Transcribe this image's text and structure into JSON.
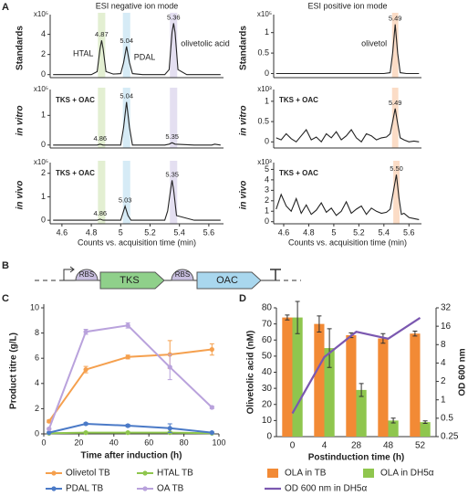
{
  "panels": [
    "A",
    "B",
    "C",
    "D"
  ],
  "chart_data": [
    {
      "type": "line",
      "title": "ESI negative ion mode",
      "ylabel": "Standards",
      "y_multiplier": "x10⁵",
      "xlim": [
        4.52,
        5.7
      ],
      "ylim": [
        -0.3,
        5.6
      ],
      "yticks": [
        0,
        2,
        4
      ],
      "x": [
        4.54,
        4.8,
        4.84,
        4.86,
        4.87,
        4.88,
        4.9,
        4.95,
        5.0,
        5.02,
        5.04,
        5.06,
        5.08,
        5.15,
        5.3,
        5.33,
        5.35,
        5.36,
        5.37,
        5.39,
        5.45,
        5.68
      ],
      "series": [
        {
          "color": "#222222",
          "values": [
            0,
            0,
            0.3,
            2.6,
            3.4,
            2.6,
            0.3,
            0.05,
            0.1,
            1.2,
            2.8,
            1.2,
            0.1,
            0,
            0,
            0.5,
            4.2,
            5.1,
            4.2,
            0.5,
            0,
            0
          ]
        }
      ],
      "highlights": [
        {
          "x": [
            4.845,
            4.895
          ],
          "color": "#e3efd2"
        },
        {
          "x": [
            5.015,
            5.065
          ],
          "color": "#d6ebf6"
        },
        {
          "x": [
            5.335,
            5.385
          ],
          "color": "#e4dff1"
        }
      ],
      "peak_labels": [
        {
          "text": "4.87",
          "x": 4.87
        },
        {
          "text": "5.04",
          "x": 5.04
        },
        {
          "text": "5.36",
          "x": 5.36
        }
      ],
      "compound_labels": [
        {
          "text": "HTAL",
          "x": 4.87
        },
        {
          "text": "PDAL",
          "x": 5.04
        },
        {
          "text": "olivetolic acid",
          "x": 5.36
        }
      ]
    },
    {
      "type": "line",
      "ylabel": "in vitro",
      "label": "TKS + OAC",
      "y_multiplier": "x10⁵",
      "xlim": [
        4.52,
        5.7
      ],
      "ylim": [
        -0.1,
        1.75
      ],
      "yticks": [
        0,
        1
      ],
      "x": [
        4.54,
        4.84,
        4.86,
        4.88,
        5.0,
        5.02,
        5.04,
        5.06,
        5.08,
        5.3,
        5.33,
        5.35,
        5.37,
        5.5,
        5.62,
        5.64,
        5.68
      ],
      "series": [
        {
          "color": "#222222",
          "values": [
            0,
            0,
            0.03,
            0,
            0,
            0.6,
            1.45,
            0.6,
            0,
            0,
            0.03,
            0.08,
            0.03,
            0,
            0,
            0.03,
            0
          ]
        }
      ],
      "highlights": [
        {
          "x": [
            4.845,
            4.895
          ],
          "color": "#e3efd2"
        },
        {
          "x": [
            5.015,
            5.065
          ],
          "color": "#d6ebf6"
        },
        {
          "x": [
            5.335,
            5.385
          ],
          "color": "#e4dff1"
        }
      ],
      "peak_labels": [
        {
          "text": "4.86",
          "x": 4.86
        },
        {
          "text": "5.04",
          "x": 5.04
        },
        {
          "text": "5.35",
          "x": 5.35
        }
      ]
    },
    {
      "type": "line",
      "ylabel": "in vivo",
      "label": "TKS + OAC",
      "y_multiplier": "x10⁵",
      "xlim": [
        4.52,
        5.7
      ],
      "ylim": [
        -0.15,
        2.3
      ],
      "yticks": [
        0,
        1,
        2
      ],
      "xticks": [
        4.6,
        4.8,
        5,
        5.2,
        5.4,
        5.6
      ],
      "xlabel": "Counts vs. acquisition time (min)",
      "x": [
        4.54,
        4.84,
        4.86,
        4.88,
        5.0,
        5.01,
        5.03,
        5.05,
        5.07,
        5.3,
        5.32,
        5.34,
        5.35,
        5.36,
        5.38,
        5.5,
        5.68
      ],
      "series": [
        {
          "color": "#222222",
          "values": [
            0,
            0,
            0.05,
            0,
            0,
            0.2,
            0.6,
            0.2,
            0,
            0,
            0.4,
            1.3,
            1.7,
            1.3,
            0.2,
            0,
            0
          ]
        }
      ],
      "highlights": [
        {
          "x": [
            4.845,
            4.895
          ],
          "color": "#e3efd2"
        },
        {
          "x": [
            5.015,
            5.065
          ],
          "color": "#d6ebf6"
        },
        {
          "x": [
            5.335,
            5.385
          ],
          "color": "#e4dff1"
        }
      ],
      "peak_labels": [
        {
          "text": "4.86",
          "x": 4.86
        },
        {
          "text": "5.03",
          "x": 5.03
        },
        {
          "text": "5.35",
          "x": 5.35
        }
      ]
    },
    {
      "type": "line",
      "title": "ESI positive ion mode",
      "ylabel": "Standards",
      "y_multiplier": "x10⁵",
      "xlim": [
        4.52,
        5.7
      ],
      "ylim": [
        -0.1,
        1.35
      ],
      "yticks": [
        0,
        0.5,
        1
      ],
      "x": [
        4.54,
        5.4,
        5.45,
        5.47,
        5.49,
        5.51,
        5.53,
        5.58,
        5.68
      ],
      "series": [
        {
          "color": "#222222",
          "values": [
            0,
            0,
            0.02,
            0.5,
            1.2,
            0.5,
            0.02,
            0,
            0
          ]
        }
      ],
      "highlights": [
        {
          "x": [
            5.465,
            5.515
          ],
          "color": "#fbdcc6"
        }
      ],
      "peak_labels": [
        {
          "text": "5.49",
          "x": 5.49
        }
      ],
      "compound_labels": [
        {
          "text": "olivetol",
          "x": 5.49
        }
      ]
    },
    {
      "type": "line",
      "ylabel": "in vitro",
      "label": "TKS + OAC",
      "y_multiplier": "x10³",
      "xlim": [
        4.52,
        5.7
      ],
      "ylim": [
        -0.15,
        1.2
      ],
      "yticks": [
        0,
        0.5,
        1
      ],
      "x": [
        4.54,
        4.58,
        4.62,
        4.66,
        4.7,
        4.74,
        4.78,
        4.82,
        4.86,
        4.9,
        4.94,
        4.98,
        5.02,
        5.06,
        5.1,
        5.14,
        5.18,
        5.22,
        5.26,
        5.3,
        5.34,
        5.38,
        5.42,
        5.45,
        5.47,
        5.49,
        5.51,
        5.53,
        5.56,
        5.6,
        5.64,
        5.68
      ],
      "series": [
        {
          "color": "#222222",
          "values": [
            0.1,
            0.05,
            0.2,
            0.08,
            0,
            0.15,
            0.3,
            0.05,
            0.12,
            0,
            0.2,
            0.1,
            0.25,
            0.05,
            0.15,
            0.3,
            0.1,
            0,
            0.2,
            0.15,
            0.05,
            0.1,
            0.12,
            0.2,
            0.5,
            0.82,
            0.45,
            0.1,
            0.05,
            0,
            0.02,
            0
          ]
        }
      ],
      "highlights": [
        {
          "x": [
            5.465,
            5.515
          ],
          "color": "#fbdcc6"
        }
      ],
      "peak_labels": [
        {
          "text": "5.49",
          "x": 5.49
        }
      ]
    },
    {
      "type": "line",
      "ylabel": "in vivo",
      "label": "TKS + OAC",
      "y_multiplier": "x10³",
      "xlim": [
        4.52,
        5.7
      ],
      "ylim": [
        -0.2,
        5.3
      ],
      "yticks": [
        0,
        1,
        2,
        3,
        4,
        5
      ],
      "xticks": [
        4.6,
        4.8,
        5,
        5.2,
        5.4,
        5.6
      ],
      "xlabel": "Counts vs. acquisition time (min)",
      "x": [
        4.54,
        4.58,
        4.62,
        4.66,
        4.7,
        4.74,
        4.78,
        4.82,
        4.86,
        4.9,
        4.94,
        4.98,
        5.02,
        5.06,
        5.1,
        5.14,
        5.18,
        5.22,
        5.26,
        5.3,
        5.34,
        5.38,
        5.42,
        5.45,
        5.47,
        5.5,
        5.52,
        5.54,
        5.56,
        5.6,
        5.64,
        5.68
      ],
      "series": [
        {
          "color": "#222222",
          "values": [
            1.2,
            2.6,
            1.5,
            1.0,
            2.2,
            0.8,
            1.6,
            0.7,
            1.1,
            1.8,
            0.9,
            1.3,
            0.6,
            1.0,
            1.9,
            0.8,
            1.2,
            1.5,
            0.7,
            1.3,
            1.0,
            0.8,
            0.9,
            1.2,
            2.5,
            4.5,
            2.3,
            0.7,
            0.8,
            0.4,
            0.3,
            0.2
          ]
        }
      ],
      "highlights": [
        {
          "x": [
            5.475,
            5.525
          ],
          "color": "#fbdcc6"
        }
      ],
      "peak_labels": [
        {
          "text": "5.50",
          "x": 5.5
        }
      ]
    },
    {
      "type": "line",
      "ylabel": "Product titre (g/L)",
      "xlabel": "Time after induction (h)",
      "xlim": [
        0,
        100
      ],
      "ylim": [
        0,
        10
      ],
      "xticks": [
        0,
        20,
        40,
        60,
        80,
        100
      ],
      "yticks": [
        0,
        2,
        4,
        6,
        8,
        10
      ],
      "x": [
        3,
        24,
        48,
        72,
        96
      ],
      "legend": true,
      "series": [
        {
          "name": "Olivetol TB",
          "color": "#f5a04e",
          "values": [
            1.0,
            5.1,
            6.1,
            6.3,
            6.7
          ],
          "errors": [
            0.1,
            0.25,
            0.15,
            1.1,
            0.45
          ]
        },
        {
          "name": "HTAL TB",
          "color": "#8fc64e",
          "values": [
            0.05,
            0.1,
            0.1,
            0.1,
            0.05
          ],
          "errors": [
            0.02,
            0.05,
            0.05,
            0.05,
            0.02
          ]
        },
        {
          "name": "PDAL TB",
          "color": "#4b7ac7",
          "values": [
            0.1,
            0.8,
            0.65,
            0.45,
            0.1
          ],
          "errors": [
            0.03,
            0.08,
            0.1,
            0.35,
            0.05
          ]
        },
        {
          "name": "OA TB",
          "color": "#b9a2dc",
          "values": [
            0.4,
            8.1,
            8.6,
            5.3,
            2.1
          ],
          "errors": [
            0.05,
            0.2,
            0.2,
            1.0,
            0.1
          ]
        }
      ]
    },
    {
      "type": "bar",
      "ylabel": "Olivetolic acid (nM)",
      "y2label": "OD 600 nm",
      "xlabel": "Postinduction time (h)",
      "categories": [
        "0",
        "4",
        "28",
        "48",
        "52"
      ],
      "ylim": [
        0,
        80
      ],
      "yticks": [
        0,
        10,
        20,
        30,
        40,
        50,
        60,
        70,
        80
      ],
      "y2lim": [
        0.25,
        32
      ],
      "y2ticks": [
        0.25,
        0.5,
        1,
        2,
        4,
        8,
        16,
        32
      ],
      "y2log": true,
      "legend": true,
      "series": [
        {
          "name": "OLA in TB",
          "color": "#f28a35",
          "values": [
            74,
            70,
            63,
            61,
            64
          ],
          "errors": [
            1.5,
            5,
            1.5,
            3,
            1.5
          ]
        },
        {
          "name": "OLA in DH5α",
          "color": "#8fc64e",
          "values": [
            74,
            55,
            29,
            10,
            9
          ],
          "errors": [
            10,
            12,
            4,
            1.5,
            0.8
          ]
        },
        {
          "name": "OD 600 nm in DH5α",
          "color": "#7b58b0",
          "axis": "y2",
          "values": [
            0.6,
            5,
            13,
            10,
            22
          ]
        }
      ]
    }
  ],
  "diagram": {
    "parts": [
      "RBS",
      "TKS",
      "RBS",
      "OAC"
    ]
  }
}
